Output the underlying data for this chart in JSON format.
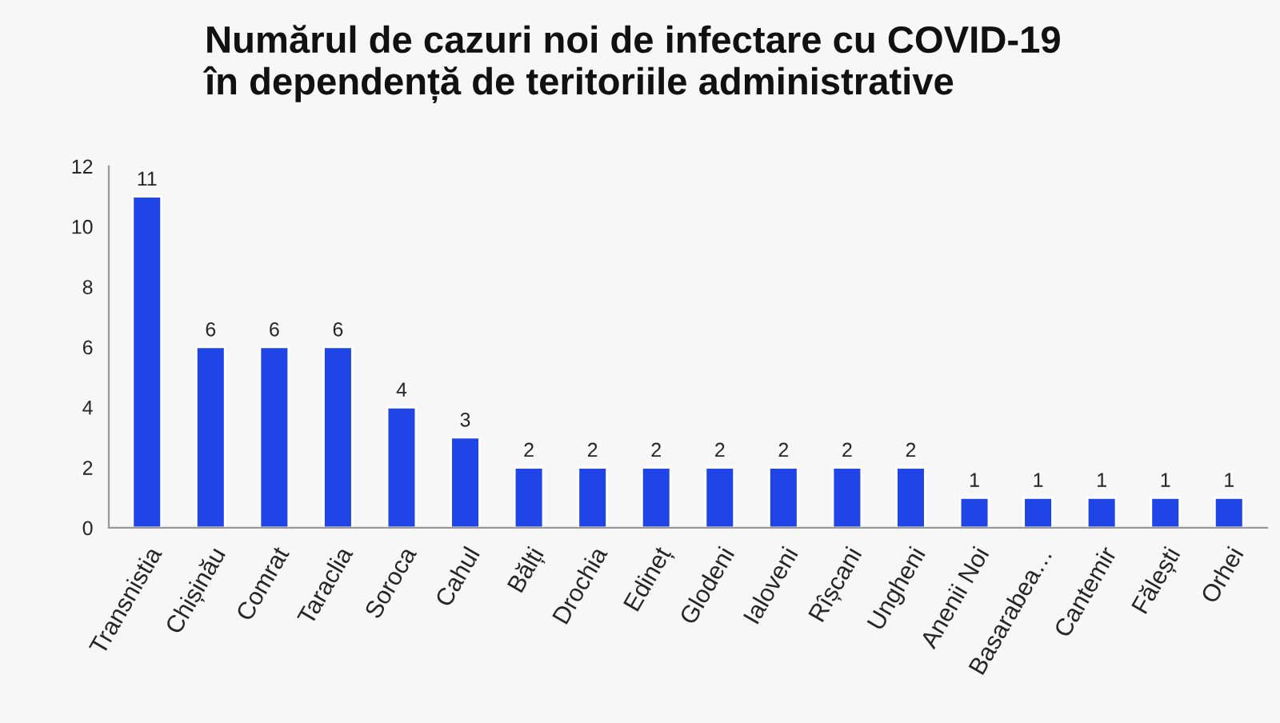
{
  "chart_data": {
    "type": "bar",
    "title": "Numărul de cazuri noi de infectare cu COVID-19\nîn dependență de teritoriile administrative",
    "categories": [
      "Transnistia",
      "Chișinău",
      "Comrat",
      "Taraclia",
      "Soroca",
      "Cahul",
      "Bălți",
      "Drochia",
      "Edineț",
      "Glodeni",
      "Ialoveni",
      "Rîșcani",
      "Ungheni",
      "Anenii Noi",
      "Basarabea…",
      "Cantemir",
      "Fălești",
      "Orhei"
    ],
    "values": [
      11,
      6,
      6,
      6,
      4,
      3,
      2,
      2,
      2,
      2,
      2,
      2,
      2,
      1,
      1,
      1,
      1,
      1
    ],
    "color": "#1f45e6",
    "ylim": [
      0,
      12
    ],
    "yticks": [
      0,
      2,
      4,
      6,
      8,
      10,
      12
    ],
    "data_labels": true,
    "grid": false,
    "legend": false
  }
}
